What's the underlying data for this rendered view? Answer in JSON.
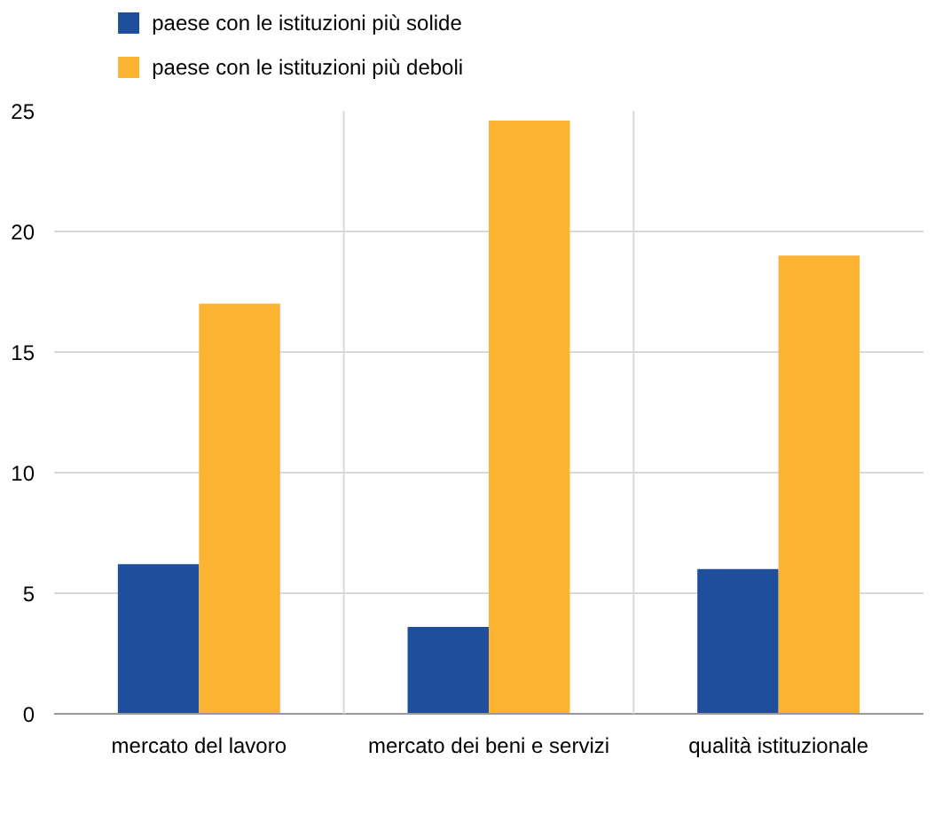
{
  "chart_data": {
    "type": "bar",
    "categories": [
      "mercato del lavoro",
      "mercato dei beni e servizi",
      "qualità istituzionale"
    ],
    "series": [
      {
        "name": "paese con le istituzioni più solide",
        "color": "#1f4e9c",
        "values": [
          6.2,
          3.6,
          6.0
        ]
      },
      {
        "name": "paese con le istituzioni più deboli",
        "color": "#fbb331",
        "values": [
          17.0,
          24.6,
          19.0
        ]
      }
    ],
    "ylim": [
      0,
      25
    ],
    "yticks": [
      0,
      5,
      10,
      15,
      20,
      25
    ],
    "grid": true,
    "legend": "top left"
  }
}
